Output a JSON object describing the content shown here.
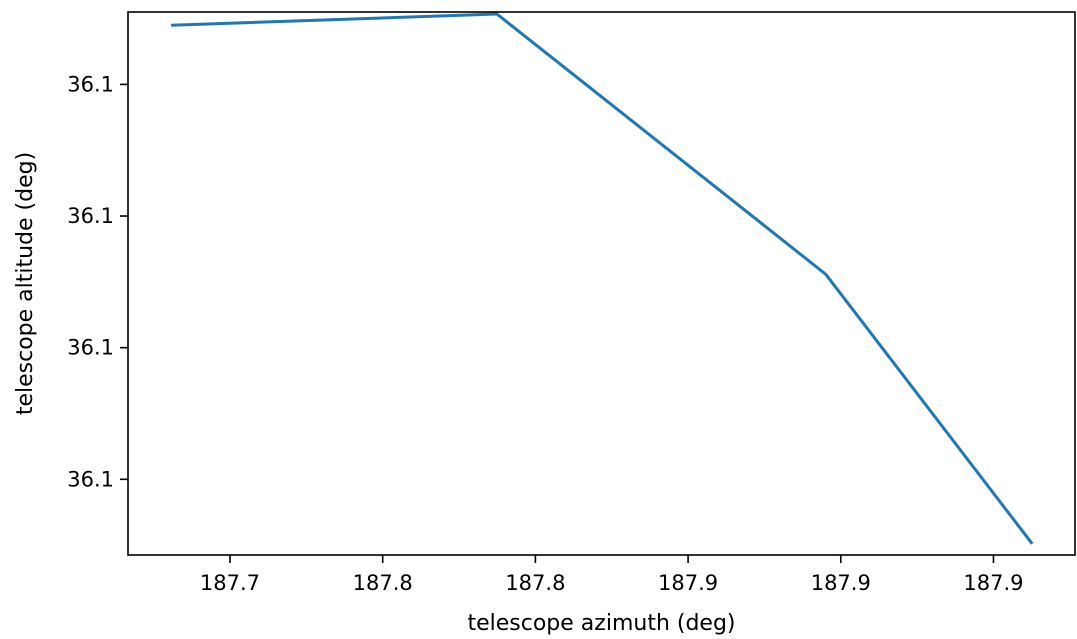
{
  "chart_data": {
    "type": "line",
    "title": "",
    "xlabel": "telescope azimuth (deg)",
    "ylabel": "telescope altitude (deg)",
    "xlim": [
      187.6416,
      187.9517
    ],
    "ylim": [
      36.09977,
      36.10142
    ],
    "grid": false,
    "x_ticks": [
      {
        "value": 187.675,
        "label": "187.7"
      },
      {
        "value": 187.725,
        "label": "187.8"
      },
      {
        "value": 187.775,
        "label": "187.8"
      },
      {
        "value": 187.825,
        "label": "187.9"
      },
      {
        "value": 187.875,
        "label": "187.9"
      },
      {
        "value": 187.925,
        "label": "187.9"
      }
    ],
    "y_ticks": [
      {
        "value": 36.1,
        "label": "36.1"
      },
      {
        "value": 36.1004,
        "label": "36.1"
      },
      {
        "value": 36.1008,
        "label": "36.1"
      },
      {
        "value": 36.1012,
        "label": "36.1"
      },
      {
        "value": 36.1016,
        "label": "36.1"
      }
    ],
    "series": [
      {
        "color": "#1f77b4",
        "x": [
          187.6557,
          187.7624,
          187.8701,
          187.9377
        ],
        "y": [
          36.10138,
          36.101414,
          36.100623,
          36.099804
        ]
      }
    ]
  }
}
